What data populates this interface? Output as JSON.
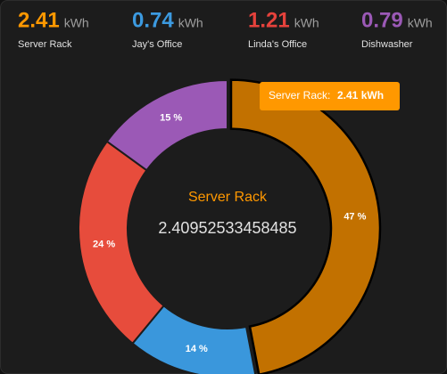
{
  "stats": [
    {
      "value": "2.41",
      "unit": "kWh",
      "label": "Server Rack",
      "color": "#ff9800"
    },
    {
      "value": "0.74",
      "unit": "kWh",
      "label": "Jay's Office",
      "color": "#3c9ae0"
    },
    {
      "value": "1.21",
      "unit": "kWh",
      "label": "Linda's Office",
      "color": "#e6423c"
    },
    {
      "value": "0.79",
      "unit": "kWh",
      "label": "Dishwasher",
      "color": "#9b59b6"
    }
  ],
  "chart_data": {
    "type": "donut",
    "categories": [
      "Server Rack",
      "Jay's Office",
      "Linda's Office",
      "Dishwasher"
    ],
    "values": [
      47,
      14,
      24,
      15
    ],
    "value_labels": [
      "47 %",
      "14 %",
      "24 %",
      "15 %"
    ],
    "colors": [
      "#c27100",
      "#3a97dc",
      "#e74c3c",
      "#9b59b6"
    ],
    "highlight": 0,
    "tooltip": {
      "name": "Server Rack:",
      "value": "2.41 kWh"
    },
    "center": {
      "name": "Server Rack",
      "value": 2.40952533458485
    }
  }
}
